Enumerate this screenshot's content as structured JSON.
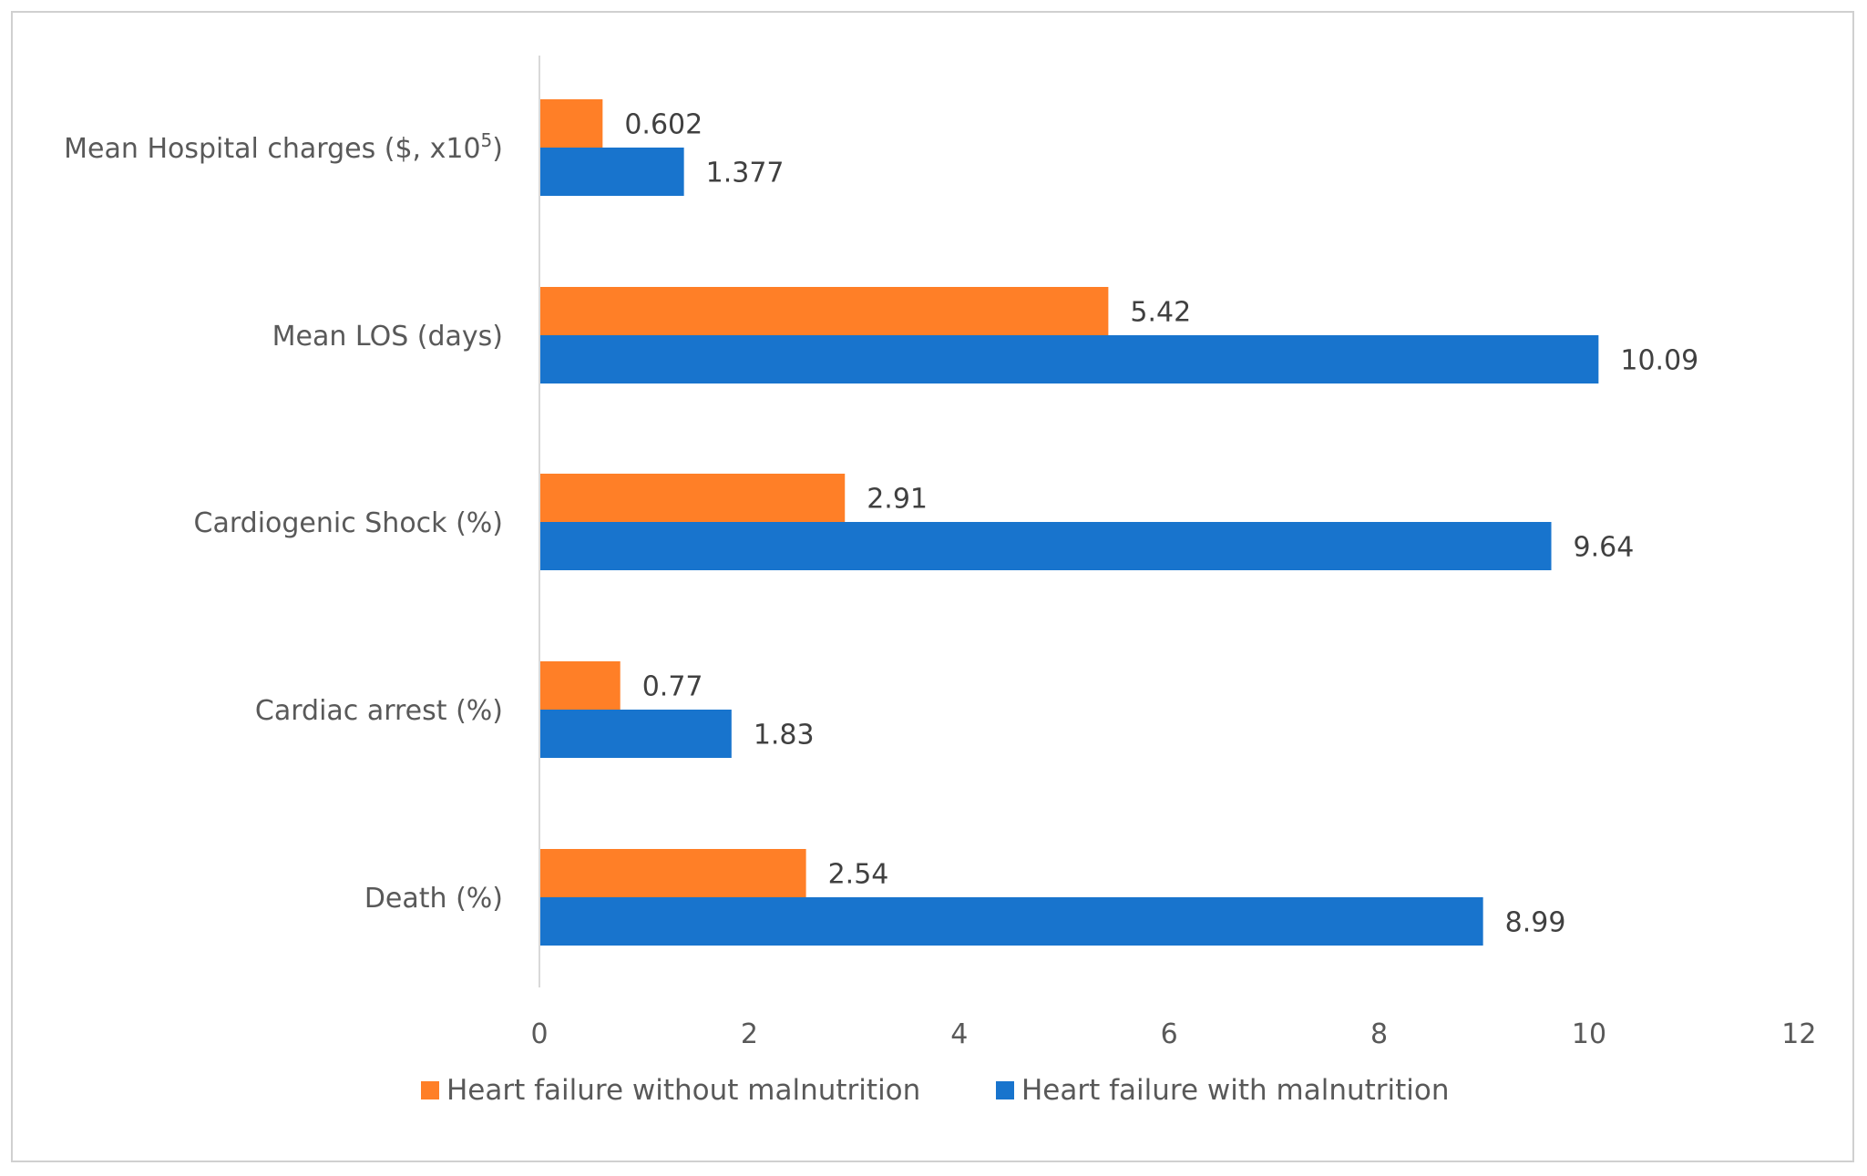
{
  "chart_data": {
    "type": "bar",
    "orientation": "horizontal",
    "title": "",
    "xlabel": "",
    "ylabel": "",
    "categories": [
      {
        "label": "Mean Hospital charges ($, x10",
        "sup": "5",
        "suffix": ")"
      },
      {
        "label": "Mean LOS  (days)",
        "sup": "",
        "suffix": ""
      },
      {
        "label": "Cardiogenic Shock (%)",
        "sup": "",
        "suffix": ""
      },
      {
        "label": "Cardiac arrest (%)",
        "sup": "",
        "suffix": ""
      },
      {
        "label": "Death (%)",
        "sup": "",
        "suffix": ""
      }
    ],
    "series": [
      {
        "name": "Heart failure without malnutrition",
        "color": "#FF7F27",
        "values": [
          0.602,
          5.42,
          2.91,
          0.77,
          2.54
        ],
        "value_labels": [
          "0.602",
          "5.42",
          "2.91",
          "0.77",
          "2.54"
        ]
      },
      {
        "name": "Heart failure with malnutrition",
        "color": "#1874CD",
        "values": [
          1.377,
          10.09,
          9.64,
          1.83,
          8.99
        ],
        "value_labels": [
          "1.377",
          "10.09",
          "9.64",
          "1.83",
          "8.99"
        ]
      }
    ],
    "xlim": [
      0,
      12
    ],
    "xticks": [
      0,
      2,
      4,
      6,
      8,
      10,
      12
    ],
    "xtick_labels": [
      "0",
      "2",
      "4",
      "6",
      "8",
      "10",
      "12"
    ],
    "grid": false,
    "legend_position": "bottom"
  }
}
